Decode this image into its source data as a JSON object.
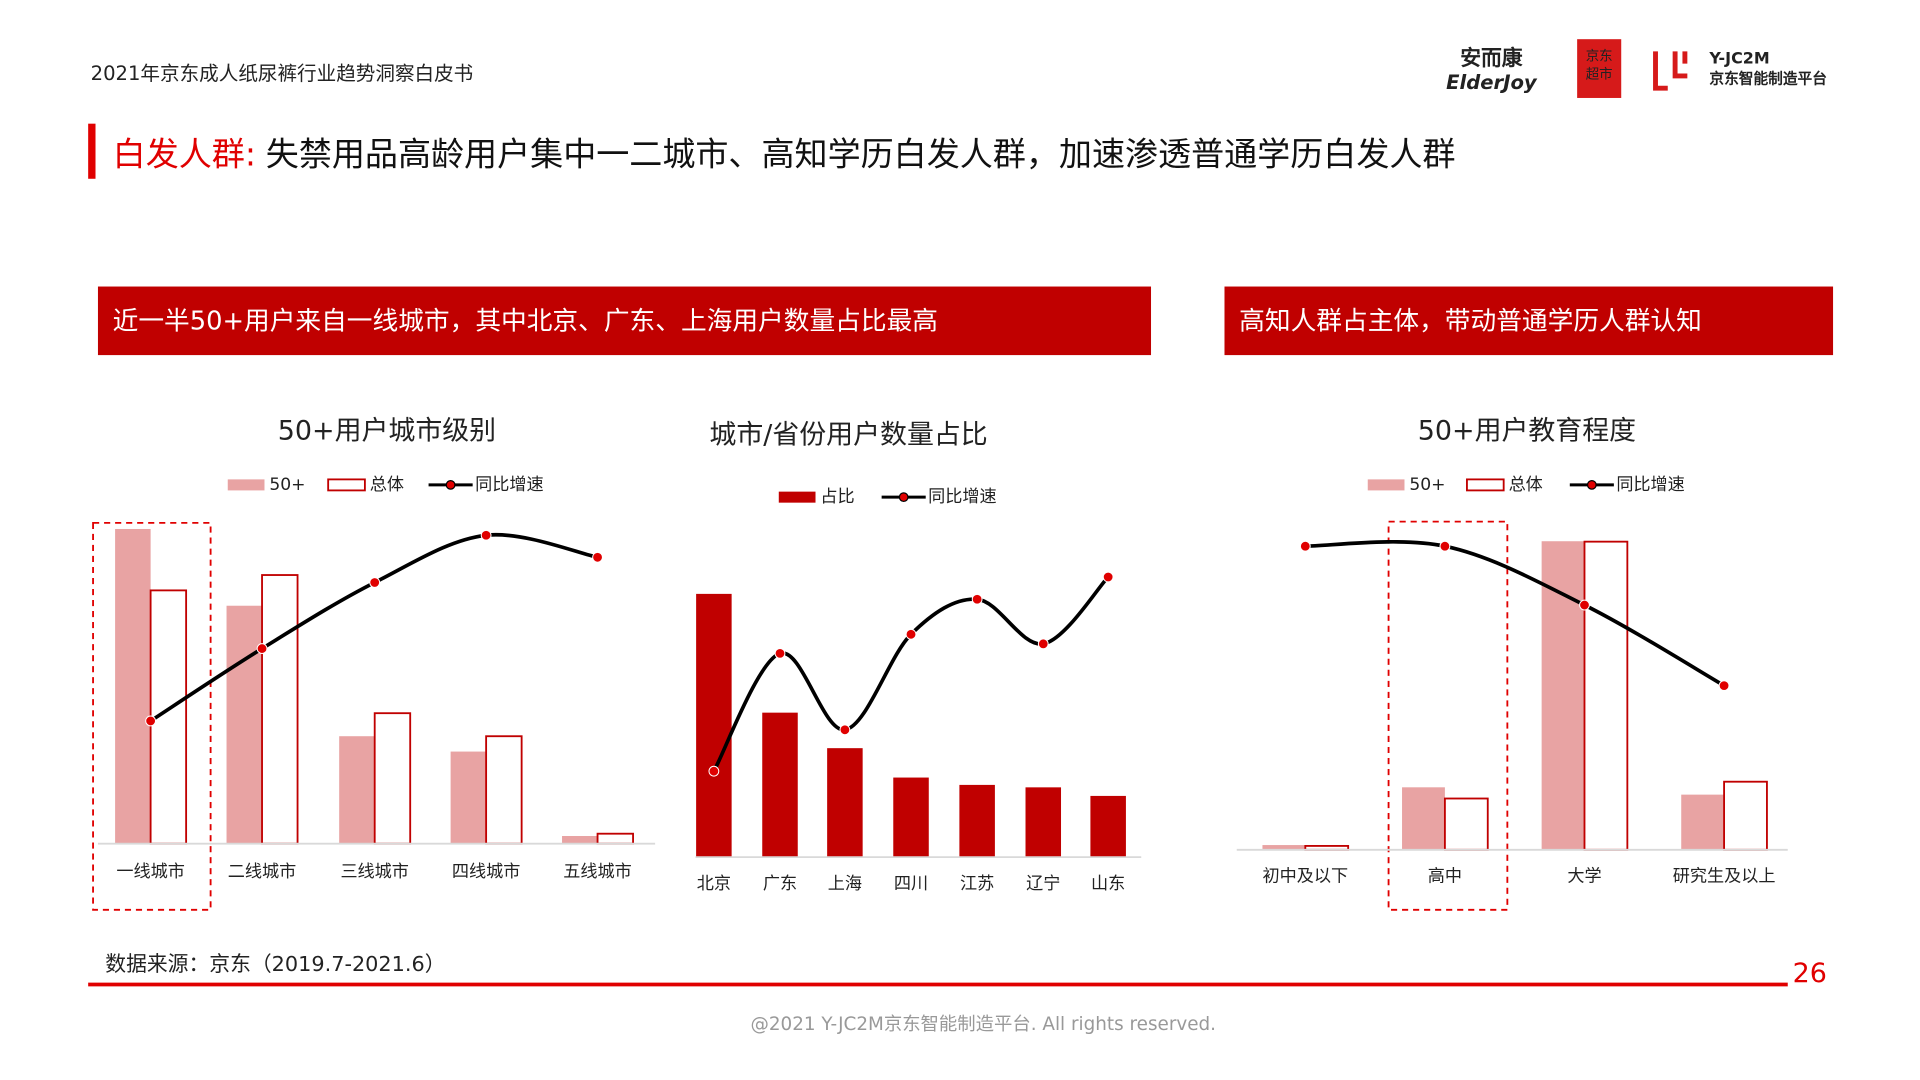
{
  "header": {
    "report_title": "2021年京东成人纸尿裤行业趋势洞察白皮书",
    "logos": [
      "安而康",
      "ElderJoy",
      "京东",
      "超市",
      "Y-JC2M",
      "京东智能制造平台"
    ]
  },
  "title": {
    "highlight": "白发人群:",
    "text": "失禁用品高龄用户集中一二城市、高知学历白发人群，加速渗透普通学历白发人群"
  },
  "banners": [
    "近一半50+用户来自一线城市，其中北京、广东、上海用户数量占比最高",
    "高知人群占主体，带动普通学历人群认知"
  ],
  "chart_data": [
    {
      "type": "combo",
      "title": "50+用户城市级别",
      "categories": [
        "一线城市",
        "二线城市",
        "三线城市",
        "四线城市",
        "五线城市"
      ],
      "series": [
        {
          "name": "50+",
          "type": "bar",
          "color": "#e8a3a3",
          "values": [
            41,
            31,
            14,
            12,
            1
          ]
        },
        {
          "name": "总体",
          "type": "bar",
          "color": "#ffffff",
          "edgecolor": "#c00000",
          "values": [
            33,
            35,
            17,
            14,
            1.3
          ]
        },
        {
          "name": "同比增速",
          "type": "line",
          "color": "#000000",
          "marker_color": "#e00000",
          "values": [
            39,
            62,
            83,
            98,
            91
          ]
        }
      ]
    },
    {
      "type": "combo",
      "title": "城市/省份用户数量占比",
      "categories": [
        "北京",
        "广东",
        "上海",
        "四川",
        "江苏",
        "辽宁",
        "山东"
      ],
      "series": [
        {
          "name": "占比",
          "type": "bar",
          "color": "#c00000",
          "values": [
            21.5,
            11.8,
            8.9,
            6.5,
            5.9,
            5.7,
            5.0
          ]
        },
        {
          "name": "同比增速",
          "type": "line",
          "color": "#000000",
          "marker_color": "#e00000",
          "values": [
            27,
            64,
            40,
            70,
            81,
            67,
            88
          ]
        }
      ]
    },
    {
      "type": "combo",
      "title": "50+用户教育程度",
      "categories": [
        "初中及以下",
        "高中",
        "大学",
        "研究生及以上"
      ],
      "series": [
        {
          "name": "50+",
          "type": "bar",
          "color": "#e8a3a3",
          "values": [
            1.1,
            14.5,
            71.6,
            12.8
          ]
        },
        {
          "name": "总体",
          "type": "bar",
          "color": "#ffffff",
          "edgecolor": "#c00000",
          "values": [
            0.9,
            11.9,
            71.5,
            15.8
          ]
        },
        {
          "name": "同比增速",
          "type": "line",
          "color": "#000000",
          "marker_color": "#e00000",
          "values": [
            98,
            98,
            79,
            53
          ]
        }
      ]
    }
  ],
  "source": "数据来源：京东（2019.7-2021.6）",
  "page_number": "26",
  "footer": "@2021 Y-JC2M京东智能制造平台. All rights reserved."
}
